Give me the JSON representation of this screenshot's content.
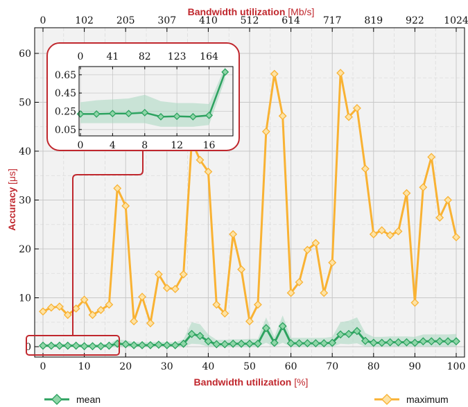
{
  "colors": {
    "accent": "#c0272d",
    "mean": "#2ca25f",
    "mean_marker_fill": "#8fd6a8",
    "mean_band": "#a7d7c0",
    "maximum": "#f9b233",
    "maximum_marker_fill": "#fde3a6",
    "grid": "#c8c8c8",
    "plot_bg": "#f2f2f2"
  },
  "chart_data": {
    "type": "line",
    "xlabel": "Bandwidth utilization",
    "xlabel_unit": "[%]",
    "x2label": "Bandwidth utilization",
    "x2label_unit": "[Mb/s]",
    "ylabel": "Accuracy",
    "ylabel_unit": "[μs]",
    "xlim": [
      0,
      100
    ],
    "ylim": [
      -2,
      63
    ],
    "xticks": [
      0,
      10,
      20,
      30,
      40,
      50,
      60,
      70,
      80,
      90,
      100
    ],
    "yticks": [
      0,
      10,
      20,
      30,
      40,
      50,
      60
    ],
    "x2ticks": [
      {
        "x": 0,
        "label": "0"
      },
      {
        "x": 10,
        "label": "102"
      },
      {
        "x": 20,
        "label": "205"
      },
      {
        "x": 30,
        "label": "307"
      },
      {
        "x": 40,
        "label": "410"
      },
      {
        "x": 50,
        "label": "512"
      },
      {
        "x": 60,
        "label": "614"
      },
      {
        "x": 70,
        "label": "717"
      },
      {
        "x": 80,
        "label": "819"
      },
      {
        "x": 90,
        "label": "922"
      },
      {
        "x": 100,
        "label": "1024"
      }
    ],
    "grid": true,
    "legend": "bottom",
    "x": [
      0,
      2,
      4,
      6,
      8,
      10,
      12,
      14,
      16,
      18,
      20,
      22,
      24,
      26,
      28,
      30,
      32,
      34,
      36,
      38,
      40,
      42,
      44,
      46,
      48,
      50,
      52,
      54,
      56,
      58,
      60,
      62,
      64,
      66,
      68,
      70,
      72,
      74,
      76,
      78,
      80,
      82,
      84,
      86,
      88,
      90,
      92,
      94,
      96,
      98,
      100
    ],
    "series": [
      {
        "name": "mean",
        "values": [
          0.2,
          0.2,
          0.2,
          0.2,
          0.2,
          0.1,
          0.1,
          0.1,
          0.2,
          0.6,
          0.5,
          0.3,
          0.3,
          0.3,
          0.4,
          0.3,
          0.3,
          0.6,
          2.6,
          2.2,
          1.1,
          0.5,
          0.5,
          0.6,
          0.6,
          0.6,
          0.6,
          3.8,
          0.8,
          4.2,
          0.7,
          0.7,
          0.7,
          0.7,
          0.7,
          0.8,
          2.5,
          2.6,
          3.2,
          1.2,
          0.8,
          0.8,
          0.9,
          0.9,
          0.9,
          0.8,
          1.1,
          1.1,
          1.1,
          1.1,
          1.1
        ],
        "lower": [
          0,
          0,
          0,
          0,
          0,
          0,
          0,
          0,
          0,
          0,
          0,
          0,
          0,
          0,
          0,
          0,
          0,
          0,
          0.6,
          0.5,
          0,
          0,
          0,
          0,
          0,
          0,
          0,
          0.8,
          0,
          0.8,
          0,
          0,
          0,
          0,
          0,
          0,
          0.6,
          0.5,
          0.7,
          0,
          0,
          0,
          0,
          0,
          0,
          0,
          0,
          0,
          0,
          0,
          0
        ],
        "upper": [
          0.6,
          0.6,
          0.6,
          0.6,
          0.6,
          0.5,
          0.5,
          0.5,
          0.6,
          1.5,
          1.3,
          0.9,
          0.9,
          0.9,
          1.0,
          0.9,
          0.9,
          1.5,
          5.0,
          4.6,
          2.5,
          1.4,
          1.4,
          1.5,
          1.5,
          1.6,
          1.6,
          6.0,
          2.0,
          6.4,
          1.8,
          1.8,
          1.8,
          1.8,
          1.8,
          2.0,
          5.0,
          5.3,
          6.0,
          2.8,
          2.0,
          2.0,
          2.1,
          2.1,
          2.1,
          2.0,
          2.5,
          2.5,
          2.5,
          2.5,
          2.6
        ]
      },
      {
        "name": "maximum",
        "values": [
          7.2,
          8.0,
          8.2,
          6.5,
          7.8,
          9.6,
          6.5,
          7.5,
          8.6,
          32.4,
          28.8,
          5.2,
          10.2,
          4.8,
          14.8,
          12.0,
          11.8,
          14.8,
          42.0,
          38.2,
          35.8,
          8.6,
          6.8,
          23.0,
          15.8,
          5.2,
          8.6,
          44.0,
          55.8,
          47.2,
          11.0,
          13.2,
          19.8,
          21.2,
          11.0,
          17.2,
          56.0,
          47.0,
          48.8,
          36.4,
          23.0,
          23.8,
          22.8,
          23.6,
          31.4,
          9.0,
          32.6,
          38.8,
          26.4,
          30.0,
          22.4
        ]
      }
    ],
    "inset": {
      "x_top_ticks": [
        "0",
        "41",
        "82",
        "123",
        "164"
      ],
      "x_top_values": [
        0,
        4,
        8,
        12,
        16
      ],
      "x_bottom_ticks": [
        "0",
        "4",
        "8",
        "12",
        "16"
      ],
      "xlim": [
        0,
        18.8
      ],
      "ylim": [
        -0.02,
        0.74
      ],
      "yticks": [
        0.05,
        0.25,
        0.45,
        0.65
      ],
      "ytick_labels": [
        "0.05",
        "0.25",
        "0.45",
        "0.65"
      ],
      "x": [
        0,
        2,
        4,
        6,
        8,
        10,
        12,
        14,
        16,
        18
      ],
      "mean": [
        0.22,
        0.22,
        0.225,
        0.225,
        0.235,
        0.19,
        0.195,
        0.19,
        0.205,
        0.68
      ],
      "lower": [
        0.12,
        0.12,
        0.12,
        0.12,
        0.12,
        0.08,
        0.08,
        0.08,
        0.1,
        0.6
      ],
      "upper": [
        0.35,
        0.37,
        0.38,
        0.39,
        0.43,
        0.36,
        0.34,
        0.34,
        0.33,
        0.74
      ]
    }
  }
}
